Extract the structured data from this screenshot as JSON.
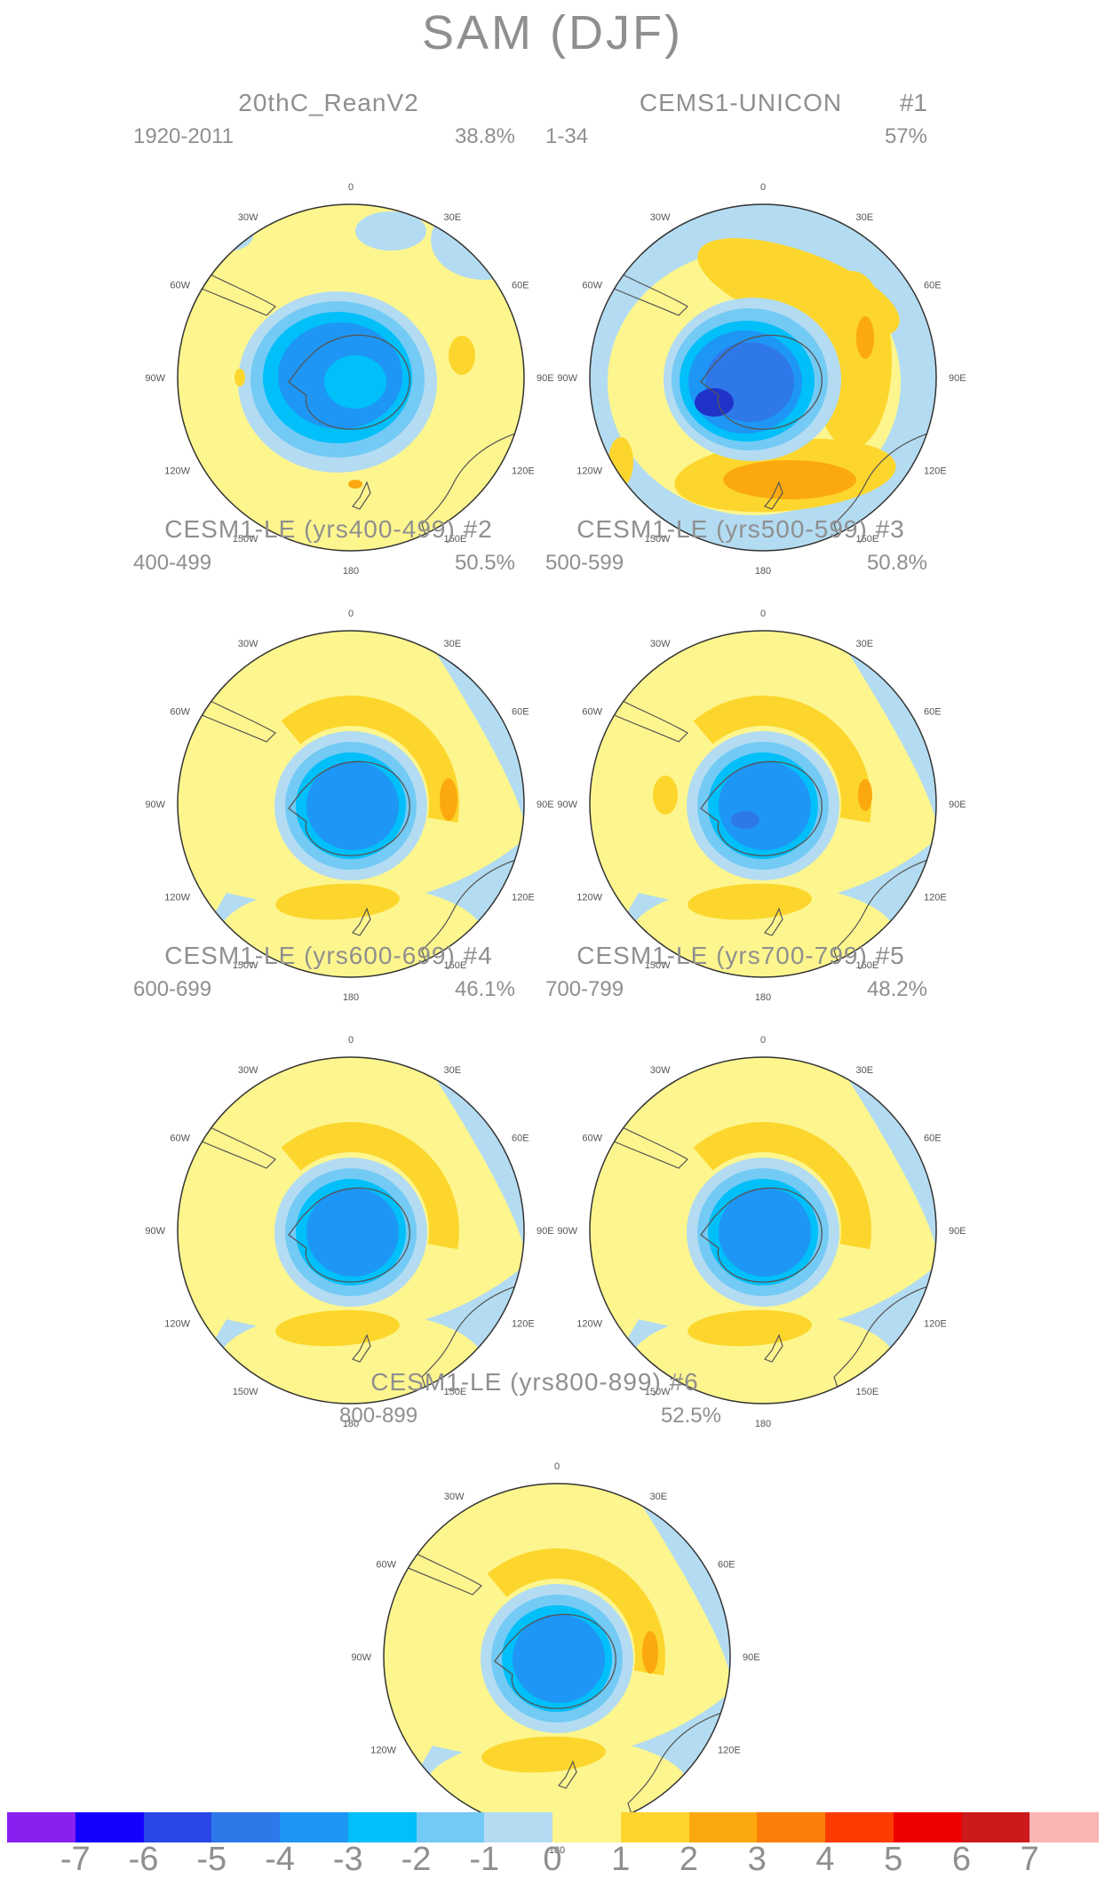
{
  "title": "SAM (DJF)",
  "lon_labels": {
    "top": "0",
    "top_right": "30E",
    "right_upper": "60E",
    "right": "90E",
    "right_lower": "120E",
    "bottom_right": "150E",
    "bottom": "180",
    "bottom_left": "150W",
    "left_lower": "120W",
    "left": "90W",
    "left_upper": "60W",
    "top_left": "30W"
  },
  "panels": [
    {
      "title": "20thC_ReanV2",
      "number": "",
      "years": "1920-2011",
      "percent": "38.8%",
      "style": "reanalysis"
    },
    {
      "title": "CEMS1-UNICON",
      "number": "#1",
      "years": "1-34",
      "percent": "57%",
      "style": "unicon"
    },
    {
      "title": "CESM1-LE (yrs400-499)",
      "number": "#2",
      "years": "400-499",
      "percent": "50.5%",
      "style": "le_a"
    },
    {
      "title": "CESM1-LE (yrs500-599)",
      "number": "#3",
      "years": "500-599",
      "percent": "50.8%",
      "style": "le_b"
    },
    {
      "title": "CESM1-LE (yrs600-699)",
      "number": "#4",
      "years": "600-699",
      "percent": "46.1%",
      "style": "le_c"
    },
    {
      "title": "CESM1-LE (yrs700-799)",
      "number": "#5",
      "years": "700-799",
      "percent": "48.2%",
      "style": "le_c"
    },
    {
      "title": "CESM1-LE (yrs800-899)",
      "number": "#6",
      "years": "800-899",
      "percent": "52.5%",
      "style": "le_d"
    }
  ],
  "colorbar": {
    "colors": [
      "#8a1ff0",
      "#1400ff",
      "#2a46e8",
      "#2e78ea",
      "#1e96f5",
      "#00bff9",
      "#73caf5",
      "#b3dcf2",
      "#fdf68e",
      "#fdd62d",
      "#fba90e",
      "#fb7d0a",
      "#fc3c03",
      "#ee0000",
      "#cc1a1a",
      "#fbb4b4"
    ],
    "tick_labels": [
      "-7",
      "-6",
      "-5",
      "-4",
      "-3",
      "-2",
      "-1",
      "0",
      "1",
      "2",
      "3",
      "4",
      "5",
      "6",
      "7"
    ]
  }
}
